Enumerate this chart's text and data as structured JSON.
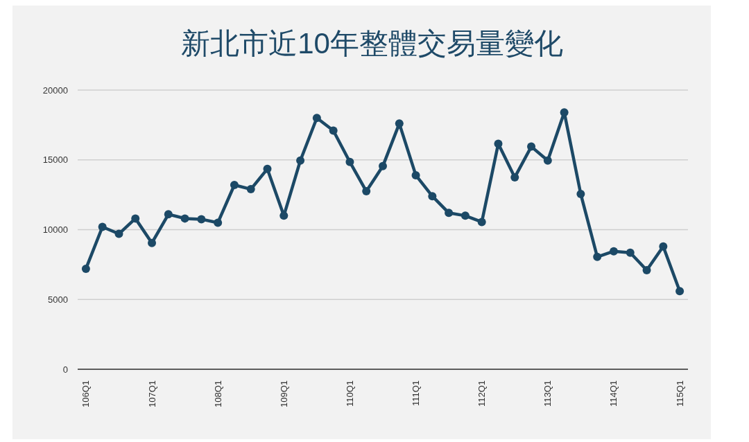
{
  "chart_data": {
    "type": "line",
    "title": "新北市近10年整體交易量變化",
    "categories": [
      "106Q1",
      null,
      null,
      null,
      "107Q1",
      null,
      null,
      null,
      "108Q1",
      null,
      null,
      null,
      "109Q1",
      null,
      null,
      null,
      "110Q1",
      null,
      null,
      null,
      "111Q1",
      null,
      null,
      null,
      "112Q1",
      null,
      null,
      null,
      "113Q1",
      null,
      null,
      null,
      "114Q1",
      null,
      null,
      null,
      "115Q1"
    ],
    "series": [
      {
        "color": "#1c4966",
        "values": [
          7200,
          10200,
          9700,
          10800,
          9050,
          11100,
          10800,
          10750,
          10500,
          13200,
          12900,
          14350,
          11000,
          14950,
          18000,
          17100,
          14850,
          12750,
          14550,
          17600,
          13900,
          12400,
          11200,
          11000,
          10550,
          16150,
          13750,
          15950,
          14950,
          18400,
          12550,
          8050,
          8450,
          8350,
          7100,
          8800,
          5600
        ]
      }
    ],
    "ylim": [
      0,
      20000
    ],
    "yticks": [
      0,
      5000,
      10000,
      15000,
      20000
    ],
    "grid": "y",
    "marker": "circle",
    "line_style": "solid"
  }
}
